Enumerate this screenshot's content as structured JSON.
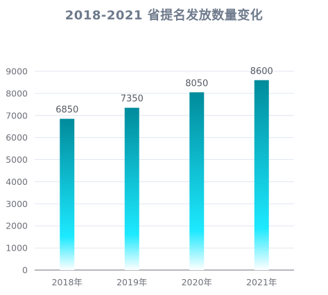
{
  "chart_data": {
    "type": "bar",
    "title": "2018-2021 省提名发放数量变化",
    "categories": [
      "2018年",
      "2019年",
      "2020年",
      "2021年"
    ],
    "values": [
      6850,
      7350,
      8050,
      8600
    ],
    "ylim": [
      0,
      9000
    ],
    "yticks": [
      0,
      1000,
      2000,
      3000,
      4000,
      5000,
      6000,
      7000,
      8000,
      9000
    ],
    "grid": true,
    "bar_gradient": [
      "#008b9b",
      "#1de9ff",
      "#ffffff"
    ],
    "xlabel": "",
    "ylabel": ""
  }
}
